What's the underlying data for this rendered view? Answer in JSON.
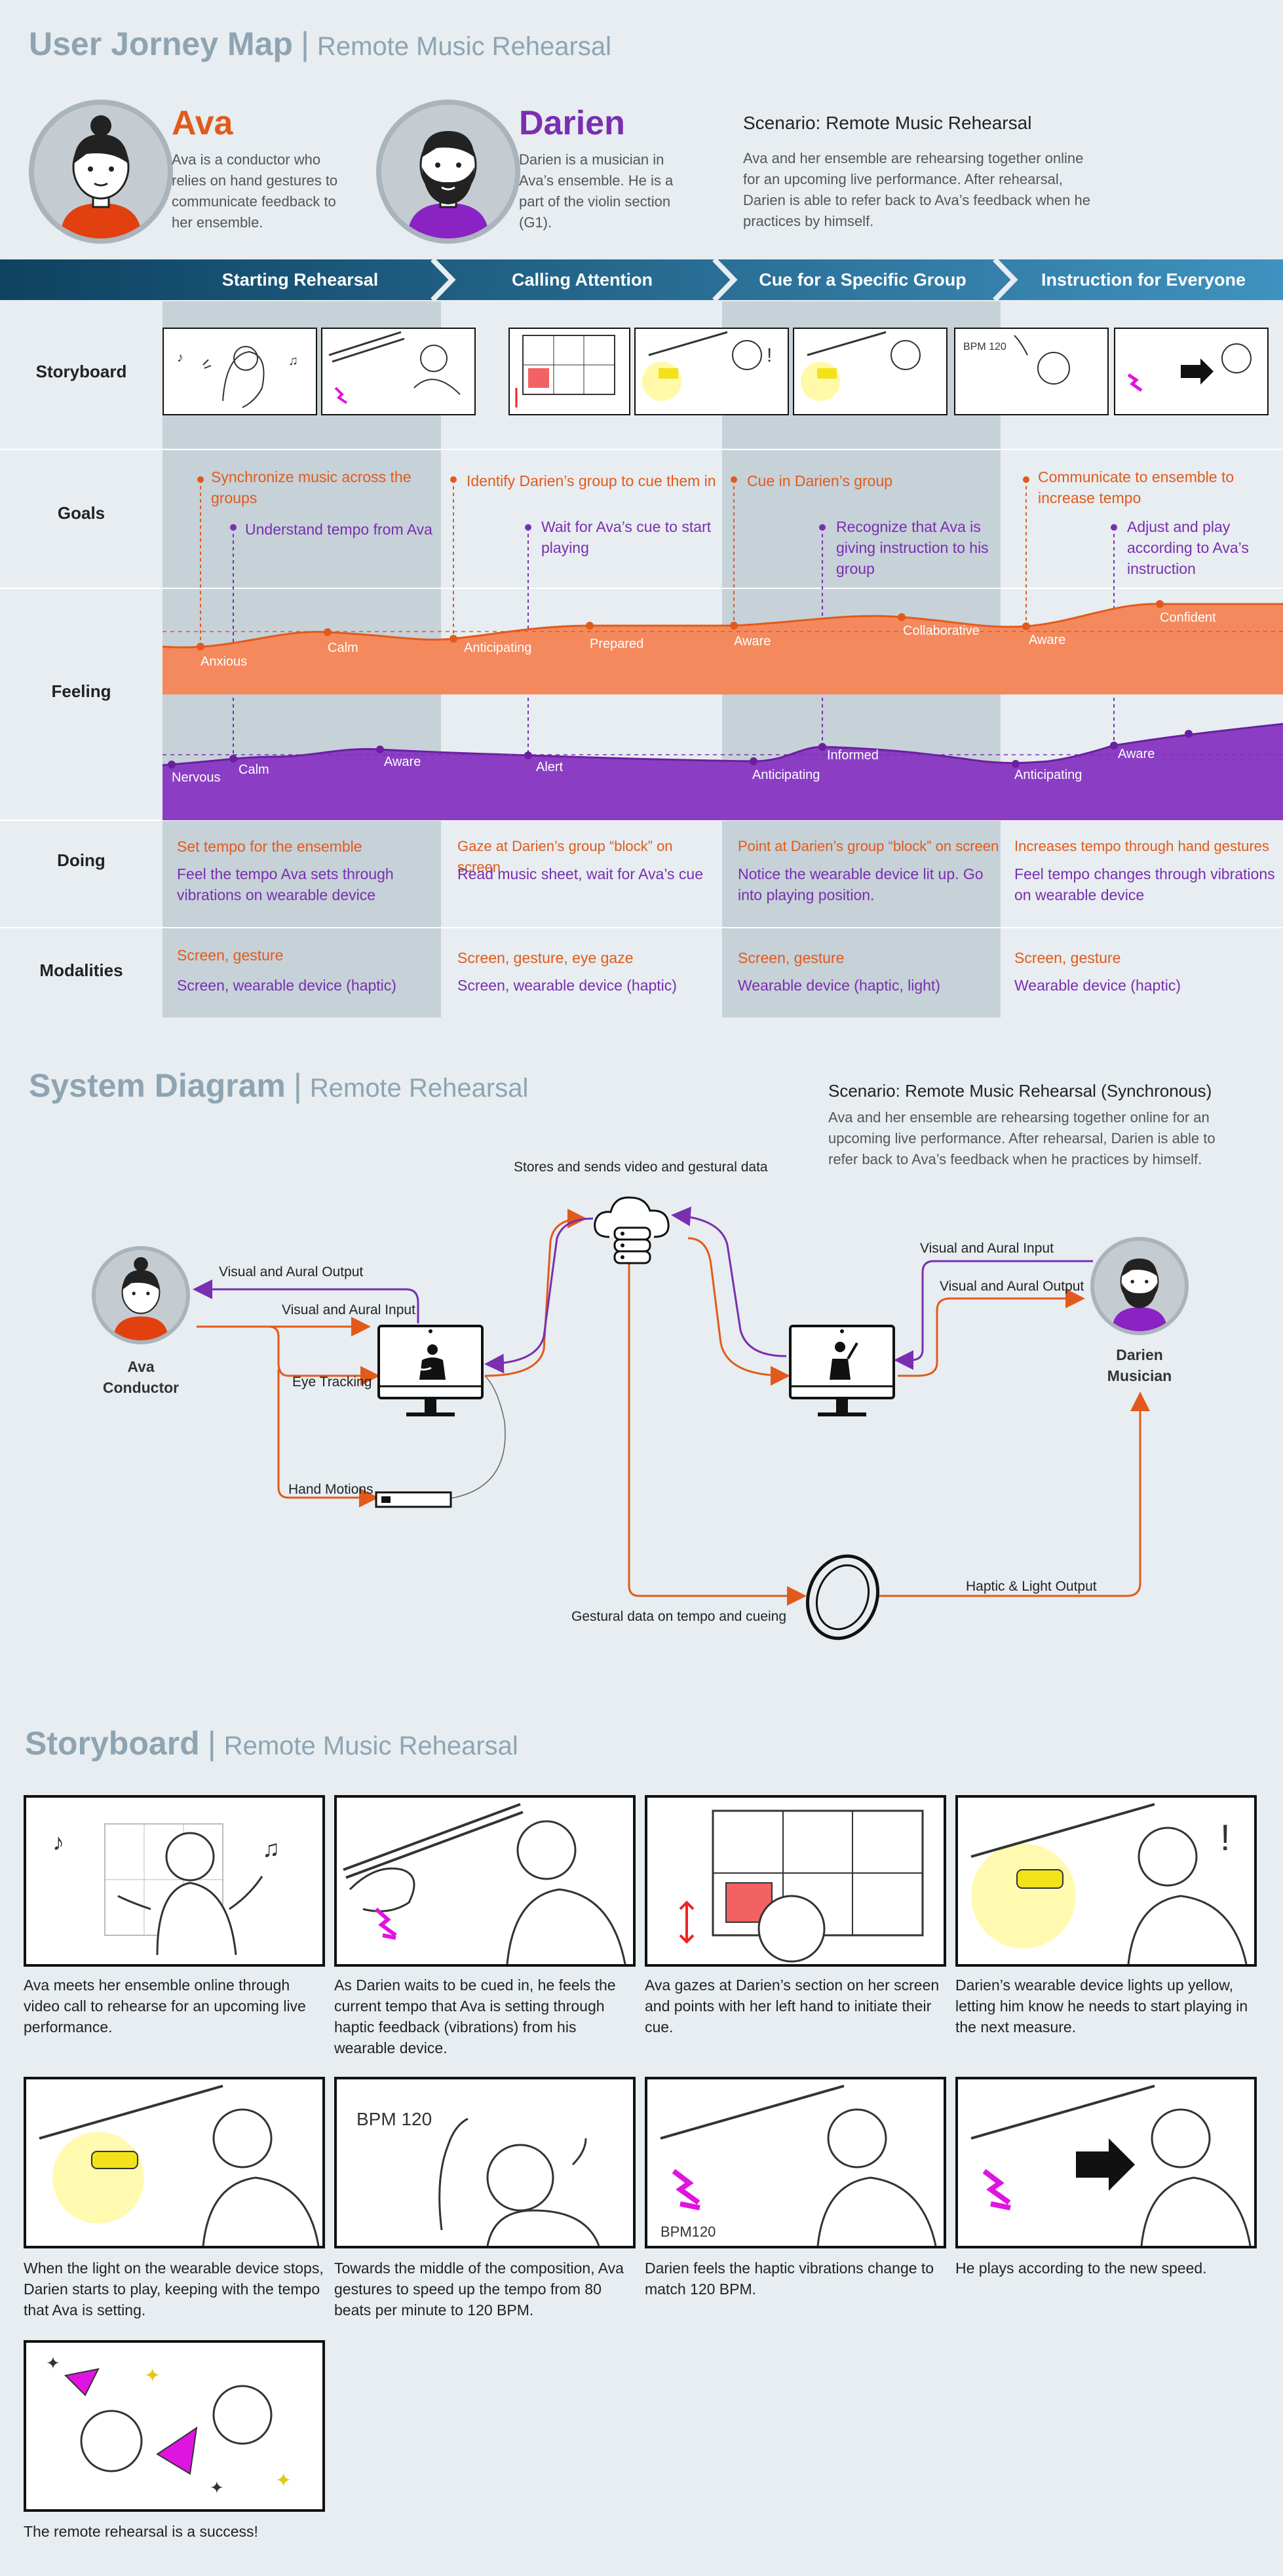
{
  "journey": {
    "title": "User Jorney Map",
    "subtitle": "Remote Music Rehearsal",
    "personas": [
      {
        "name": "Ava",
        "desc": "Ava is a conductor who relies on hand gestures to communicate feedback to her ensemble."
      },
      {
        "name": "Darien",
        "desc": "Darien is a musician in Ava’s ensemble. He is a part of the violin section (G1)."
      }
    ],
    "scenario_title": "Scenario: Remote Music Rehearsal",
    "scenario_text": "Ava and her ensemble are rehearsing together online for an upcoming live performance. After rehearsal, Darien is able to refer back to Ava’s feedback when he practices by himself.",
    "stages": [
      "Starting Rehearsal",
      "Calling Attention",
      "Cue for a Specific Group",
      "Instruction for Everyone"
    ],
    "rows": {
      "storyboard": "Storyboard",
      "goals": "Goals",
      "feeling": "Feeling",
      "doing": "Doing",
      "modalities": "Modalities"
    },
    "goals": {
      "ava": [
        "Synchronize music across the groups",
        "Identify Darien’s group to cue them in",
        "Cue in Darien’s group",
        "Communicate to ensemble to increase tempo"
      ],
      "darien": [
        "Understand tempo from Ava",
        "Wait for Ava’s cue to start playing",
        "Recognize that Ava is giving instruction to his group",
        "Adjust and play according to Ava’s instruction"
      ]
    },
    "feelings": {
      "ava": [
        "Anxious",
        "Calm",
        "Anticipating",
        "Prepared",
        "Aware",
        "Collaborative",
        "Aware",
        "Confident"
      ],
      "darien": [
        "Nervous",
        "Calm",
        "Aware",
        "Alert",
        "Anticipating",
        "Informed",
        "Anticipating",
        "Aware"
      ]
    },
    "doing": {
      "ava": [
        "Set tempo for the ensemble",
        "Gaze at Darien’s group “block” on screen",
        "Point at Darien’s group “block” on screen",
        "Increases tempo through hand gestures"
      ],
      "darien": [
        "Feel the tempo Ava sets through vibrations on wearable device",
        "Read music sheet, wait for Ava’s cue",
        "Notice the wearable device lit up. Go into playing position.",
        "Feel tempo changes through vibrations on wearable device"
      ]
    },
    "modalities": {
      "ava": [
        "Screen, gesture",
        "Screen, gesture, eye gaze",
        "Screen, gesture",
        "Screen, gesture"
      ],
      "darien": [
        "Screen, wearable device (haptic)",
        "Screen, wearable device (haptic)",
        "Wearable device (haptic, light)",
        "Wearable device (haptic)"
      ]
    }
  },
  "system": {
    "title": "System Diagram",
    "subtitle": "Remote Rehearsal",
    "scenario_title": "Scenario: Remote Music Rehearsal (Synchronous)",
    "scenario_text": "Ava and her ensemble are rehearsing together online for an upcoming live performance. After rehearsal, Darien is able to refer back to Ava’s feedback when he practices by himself.",
    "cloud_label": "Stores and sends video and gestural data",
    "ava_name": "Ava",
    "ava_role": "Conductor",
    "darien_name": "Darien",
    "darien_role": "Musician",
    "labels": {
      "ava_output": "Visual and Aural Output",
      "ava_input": "Visual and Aural Input",
      "eye_tracking": "Eye Tracking",
      "hand_motions": "Hand Motions",
      "darien_input": "Visual and Aural Input",
      "darien_output": "Visual and Aural Output",
      "gestural_data": "Gestural data on tempo and cueing",
      "haptic_output": "Haptic & Light Output"
    }
  },
  "storyboard": {
    "title": "Storyboard",
    "subtitle": "Remote Music Rehearsal",
    "captions": [
      "Ava meets her ensemble online through video call to rehearse for an upcoming live performance.",
      "As Darien waits to be cued in, he feels the current tempo that Ava is setting through haptic feedback (vibrations) from his wearable device.",
      "Ava gazes at Darien’s section on her screen and points with her left hand to initiate their cue.",
      "Darien’s wearable device lights up yellow, letting him know he needs to start playing in the next measure.",
      "When the light on the wearable device stops, Darien starts to play, keeping with the tempo that Ava is setting.",
      "Towards the middle of the composition, Ava gestures to speed up the tempo from 80 beats per minute to 120 BPM.",
      "Darien feels the haptic vibrations change to match 120 BPM.",
      "He plays according to the new speed.",
      "The remote rehearsal is a success!"
    ],
    "panel_text": {
      "bpm": "BPM 120",
      "bpm_small": "BPM120"
    }
  },
  "colors": {
    "ava": "#e25a1b",
    "darien": "#7a2eb0",
    "header_dark": "#0e4261",
    "header_light": "#3c8cb8",
    "band": "#c6d1d8"
  }
}
